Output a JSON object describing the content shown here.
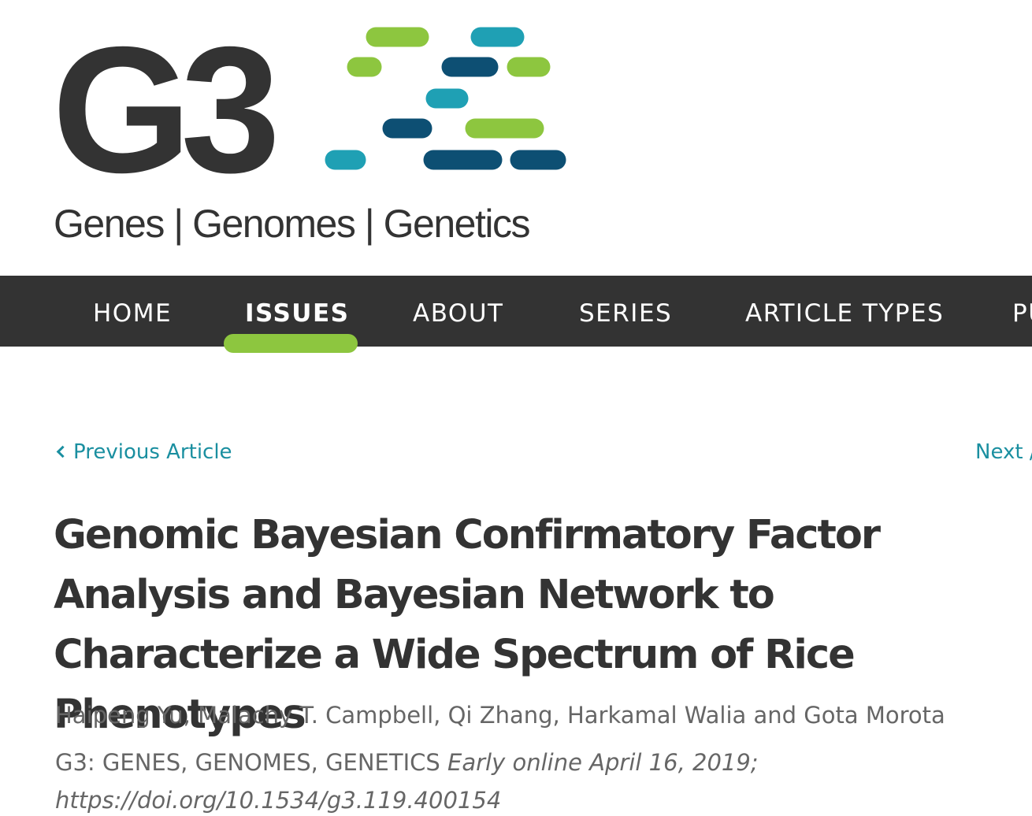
{
  "logo": {
    "mark": "G3",
    "tagline": "Genes | Genomes | Genetics",
    "colors": {
      "dark": "#333333",
      "green": "#8dc63f",
      "teal": "#1fa0b4",
      "navy": "#0d4f73"
    }
  },
  "nav": {
    "items": [
      {
        "label": "HOME",
        "active": false
      },
      {
        "label": "ISSUES",
        "active": true
      },
      {
        "label": "ABOUT",
        "active": false
      },
      {
        "label": "SERIES",
        "active": false
      },
      {
        "label": "ARTICLE TYPES",
        "active": false
      },
      {
        "label": "PU",
        "active": false
      }
    ],
    "background": "#333333",
    "active_indicator_color": "#8dc63f"
  },
  "article": {
    "prev_label": "Previous Article",
    "next_label": "Next /",
    "title": "Genomic Bayesian Confirmatory Factor Analysis and Bayesian Network to Characterize a Wide Spectrum of Rice Phenotypes",
    "authors": "Haipeng Yu, Malachy T. Campbell, Qi Zhang, Harkamal Walia and Gota Morota",
    "journal": "G3: GENES, GENOMES, GENETICS",
    "date": "Early online April 16, 2019;",
    "doi": "https://doi.org/10.1534/g3.119.400154",
    "link_color": "#1a8fa0"
  }
}
